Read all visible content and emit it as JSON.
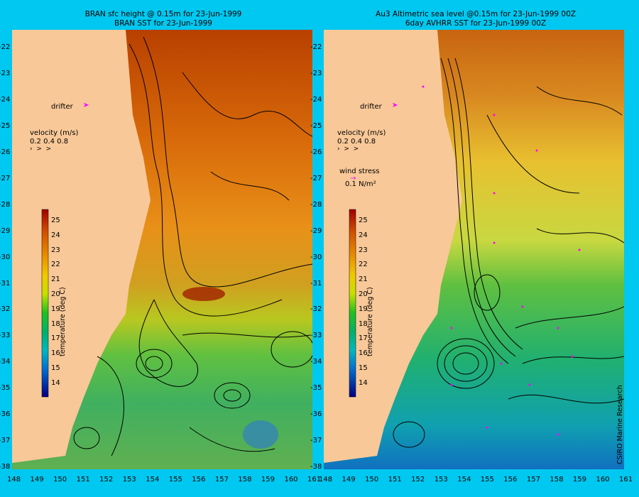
{
  "left_panel": {
    "title_line1": "BRAN sfc height @ 0.15m  for 23-Jun-1999",
    "title_line2": "BRAN SST for 23-Jun-1999",
    "drifter_label": "drifter",
    "velocity_label": "velocity (m/s)",
    "velocity_scale": "0.2 0.4 0.8"
  },
  "right_panel": {
    "title_line1": "Au3 Altimetric sea level  @0.15m  for 23-Jun-1999 00Z",
    "title_line2": "6day AVHRR SST for 23-Jun-1999 00Z",
    "drifter_label": "drifter",
    "velocity_label": "velocity (m/s)",
    "velocity_scale": "0.2 0.4 0.8",
    "wind_label": "wind stress",
    "wind_scale": "0.1 N/m²",
    "credit": "CSIRO Marine Research"
  },
  "colorbar": {
    "label": "temperature (deg C)",
    "ticks": [
      "25",
      "24",
      "23",
      "22",
      "21",
      "20",
      "19",
      "18",
      "17",
      "16",
      "15",
      "14"
    ]
  },
  "axes": {
    "lon_ticks": [
      "148",
      "149",
      "150",
      "151",
      "152",
      "153",
      "154",
      "155",
      "156",
      "157",
      "158",
      "159",
      "160",
      "161"
    ],
    "lat_ticks": [
      "-22",
      "-23",
      "-24",
      "-25",
      "-26",
      "-27",
      "-28",
      "-29",
      "-30",
      "-31",
      "-32",
      "-33",
      "-34",
      "-35",
      "-36",
      "-37",
      "-38"
    ]
  },
  "colors": {
    "background": "#00c8f0",
    "land": "#f8c898",
    "drifter": "#ff00ff",
    "wind_arrows": "#ff00ff",
    "contours": "#000000"
  }
}
